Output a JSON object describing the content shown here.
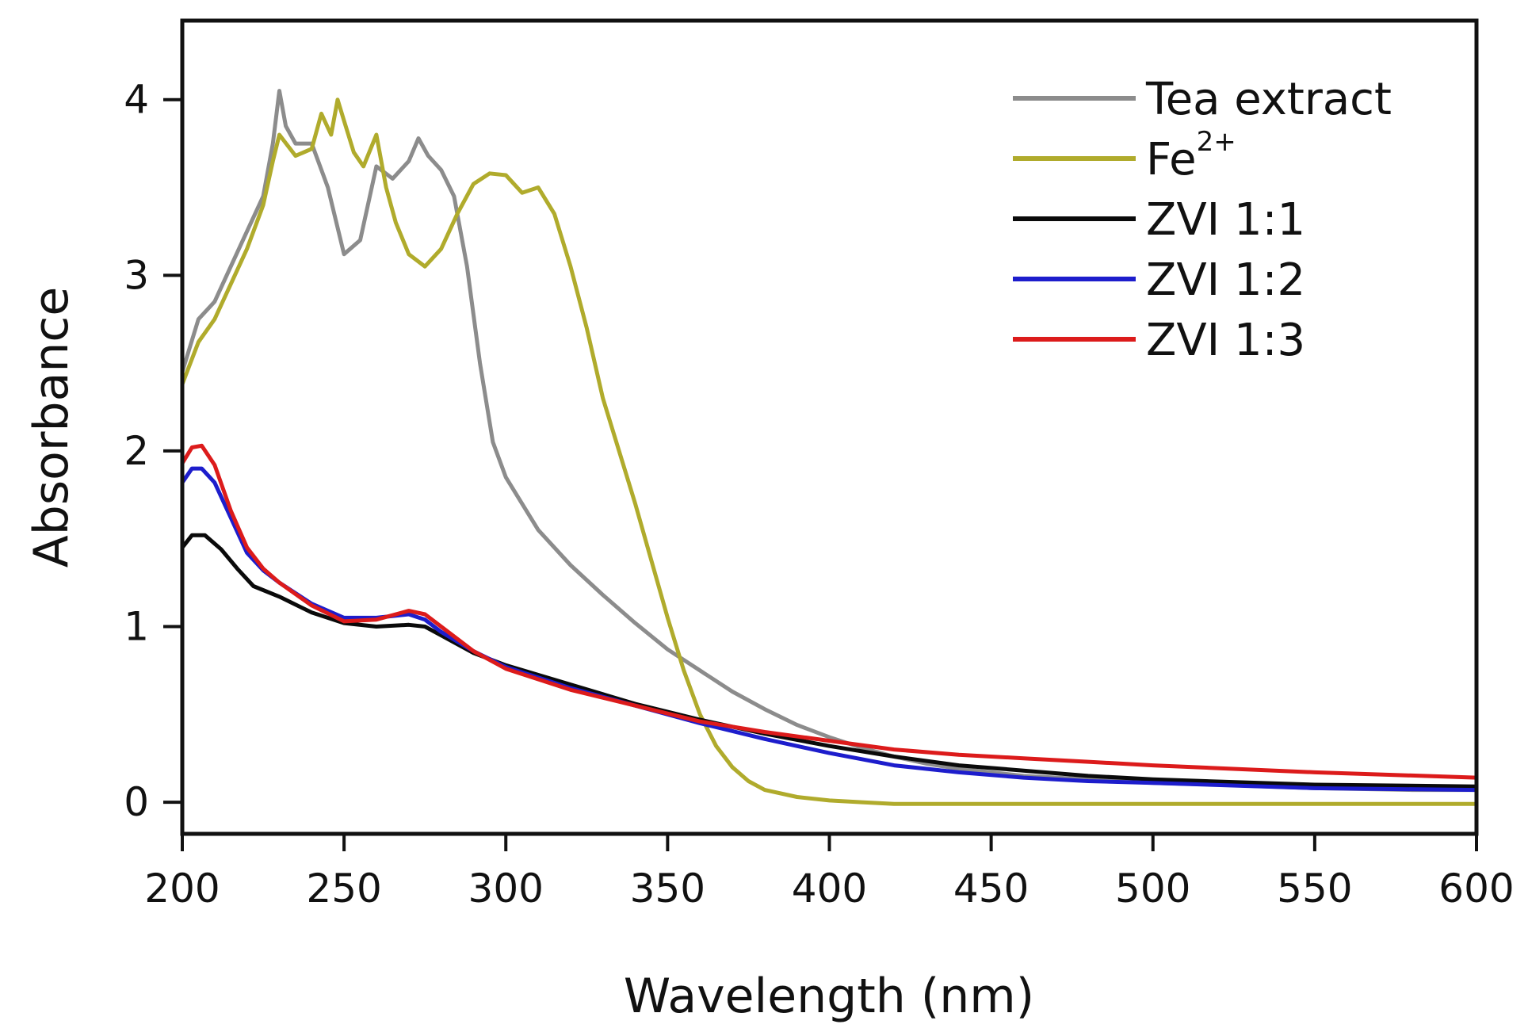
{
  "chart_data": {
    "type": "line",
    "title": "",
    "xlabel": "Wavelength (nm)",
    "ylabel": "Absorbance",
    "xlim": [
      200,
      600
    ],
    "ylim": [
      -0.18,
      4.45
    ],
    "grid": false,
    "legend_position": "top-right",
    "xticks": [
      200,
      250,
      300,
      350,
      400,
      450,
      500,
      550,
      600
    ],
    "xtick_labels": [
      "200",
      "250",
      "300",
      "350",
      "400",
      "450",
      "500",
      "550",
      "600"
    ],
    "yticks": [
      0,
      1,
      2,
      3,
      4
    ],
    "ytick_labels": [
      "0",
      "1",
      "2",
      "3",
      "4"
    ],
    "series": [
      {
        "name": "Tea extract",
        "label_main": "Tea extract",
        "label_sup": "",
        "color": "#8c8c8c",
        "x": [
          200,
          205,
          210,
          215,
          220,
          225,
          228,
          230,
          232,
          235,
          240,
          245,
          250,
          255,
          260,
          265,
          270,
          273,
          276,
          280,
          284,
          288,
          292,
          296,
          300,
          310,
          320,
          330,
          340,
          350,
          360,
          370,
          380,
          390,
          400,
          410,
          420,
          430,
          440,
          450,
          460,
          480,
          500,
          520,
          550,
          580,
          600
        ],
        "y": [
          2.45,
          2.75,
          2.85,
          3.05,
          3.25,
          3.45,
          3.75,
          4.05,
          3.85,
          3.75,
          3.75,
          3.5,
          3.12,
          3.2,
          3.62,
          3.55,
          3.65,
          3.78,
          3.68,
          3.6,
          3.45,
          3.05,
          2.5,
          2.05,
          1.85,
          1.55,
          1.35,
          1.18,
          1.02,
          0.87,
          0.75,
          0.63,
          0.53,
          0.44,
          0.37,
          0.31,
          0.26,
          0.22,
          0.19,
          0.17,
          0.15,
          0.13,
          0.11,
          0.1,
          0.08,
          0.07,
          0.07
        ]
      },
      {
        "name": "Fe2+",
        "label_main": "Fe",
        "label_sup": "2+",
        "color": "#b0ab2c",
        "x": [
          200,
          205,
          210,
          215,
          220,
          225,
          228,
          230,
          235,
          240,
          243,
          246,
          248,
          250,
          253,
          256,
          260,
          263,
          266,
          270,
          275,
          280,
          285,
          290,
          295,
          300,
          305,
          310,
          315,
          320,
          325,
          330,
          340,
          350,
          355,
          360,
          365,
          370,
          375,
          380,
          390,
          400,
          410,
          420,
          450,
          500,
          550,
          600
        ],
        "y": [
          2.38,
          2.62,
          2.75,
          2.95,
          3.15,
          3.4,
          3.65,
          3.8,
          3.68,
          3.72,
          3.92,
          3.8,
          4.0,
          3.88,
          3.7,
          3.62,
          3.8,
          3.5,
          3.3,
          3.12,
          3.05,
          3.15,
          3.35,
          3.52,
          3.58,
          3.57,
          3.47,
          3.5,
          3.35,
          3.05,
          2.7,
          2.3,
          1.7,
          1.05,
          0.75,
          0.5,
          0.32,
          0.2,
          0.12,
          0.07,
          0.03,
          0.01,
          0.0,
          -0.01,
          -0.01,
          -0.01,
          -0.01,
          -0.01
        ]
      },
      {
        "name": "ZVI 1:1",
        "label_main": "ZVI 1:1",
        "label_sup": "",
        "color": "#0a0a0a",
        "x": [
          200,
          203,
          207,
          212,
          217,
          222,
          230,
          240,
          250,
          260,
          270,
          275,
          280,
          290,
          300,
          320,
          340,
          360,
          380,
          400,
          420,
          440,
          460,
          480,
          500,
          550,
          600
        ],
        "y": [
          1.45,
          1.52,
          1.52,
          1.44,
          1.33,
          1.23,
          1.17,
          1.08,
          1.02,
          1.0,
          1.01,
          1.0,
          0.95,
          0.85,
          0.78,
          0.67,
          0.56,
          0.47,
          0.39,
          0.32,
          0.26,
          0.21,
          0.18,
          0.15,
          0.13,
          0.1,
          0.09
        ]
      },
      {
        "name": "ZVI 1:2",
        "label_main": "ZVI 1:2",
        "label_sup": "",
        "color": "#1d1dcc",
        "x": [
          200,
          203,
          206,
          210,
          215,
          220,
          225,
          230,
          240,
          250,
          260,
          270,
          275,
          280,
          290,
          300,
          320,
          340,
          360,
          380,
          400,
          420,
          440,
          460,
          480,
          500,
          550,
          600
        ],
        "y": [
          1.82,
          1.9,
          1.9,
          1.82,
          1.62,
          1.42,
          1.32,
          1.25,
          1.13,
          1.05,
          1.05,
          1.07,
          1.04,
          0.97,
          0.86,
          0.77,
          0.65,
          0.55,
          0.45,
          0.36,
          0.28,
          0.21,
          0.17,
          0.14,
          0.12,
          0.11,
          0.08,
          0.07
        ]
      },
      {
        "name": "ZVI 1:3",
        "label_main": "ZVI 1:3",
        "label_sup": "",
        "color": "#dc1b1b",
        "x": [
          200,
          203,
          206,
          210,
          215,
          220,
          225,
          230,
          240,
          250,
          260,
          270,
          275,
          280,
          290,
          300,
          320,
          340,
          360,
          380,
          400,
          420,
          440,
          460,
          480,
          500,
          550,
          600
        ],
        "y": [
          1.93,
          2.02,
          2.03,
          1.92,
          1.66,
          1.45,
          1.33,
          1.25,
          1.12,
          1.03,
          1.04,
          1.09,
          1.07,
          1.0,
          0.86,
          0.76,
          0.64,
          0.55,
          0.46,
          0.4,
          0.35,
          0.3,
          0.27,
          0.25,
          0.23,
          0.21,
          0.17,
          0.14
        ]
      }
    ]
  }
}
